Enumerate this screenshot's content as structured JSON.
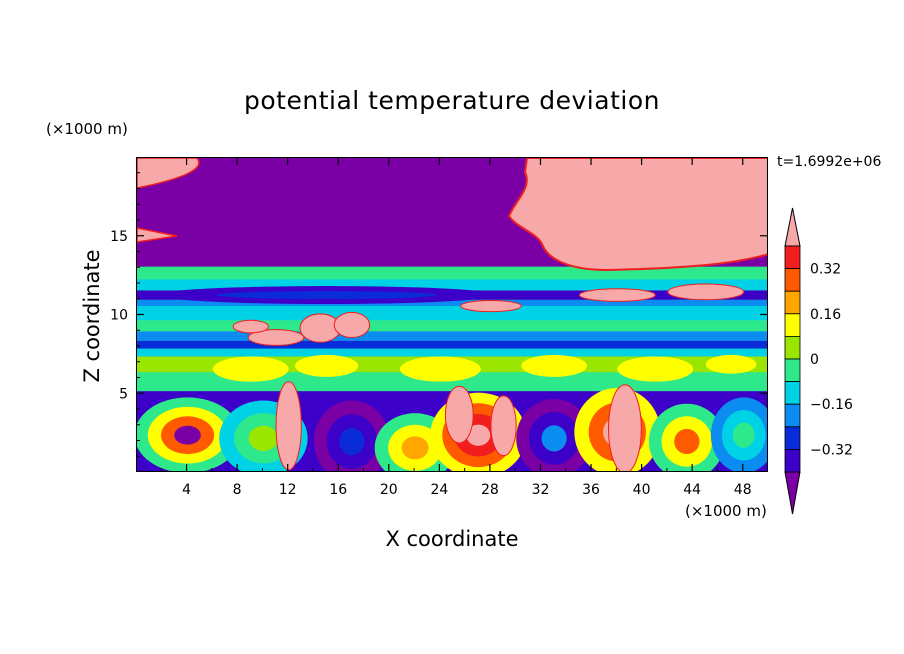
{
  "chart_data": {
    "type": "heatmap",
    "title": "potential temperature deviation",
    "xlabel": "X coordinate",
    "ylabel": "Z coordinate",
    "x_unit": "(×1000 m)",
    "z_unit": "(×1000 m)",
    "time_label": "t=1.6992e+06",
    "xlim": [
      0,
      50
    ],
    "ylim": [
      0,
      20
    ],
    "x_ticks": [
      4,
      8,
      12,
      16,
      20,
      24,
      28,
      32,
      36,
      40,
      44,
      48
    ],
    "y_ticks": [
      5,
      10,
      15
    ],
    "colorbar": {
      "levels": [
        -0.4,
        -0.32,
        -0.24,
        -0.16,
        -0.08,
        0,
        0.08,
        0.16,
        0.24,
        0.32,
        0.4
      ],
      "labels": [
        "0.32",
        "0.16",
        "0",
        "−0.16",
        "−0.32"
      ],
      "colors": [
        "#7a00a5",
        "#3d00c8",
        "#0a2cd8",
        "#0a8cf0",
        "#00d2e6",
        "#2ee88c",
        "#9ae600",
        "#ffff00",
        "#ffa600",
        "#ff5a00",
        "#f01e1e",
        "#f7a8a8"
      ]
    }
  }
}
